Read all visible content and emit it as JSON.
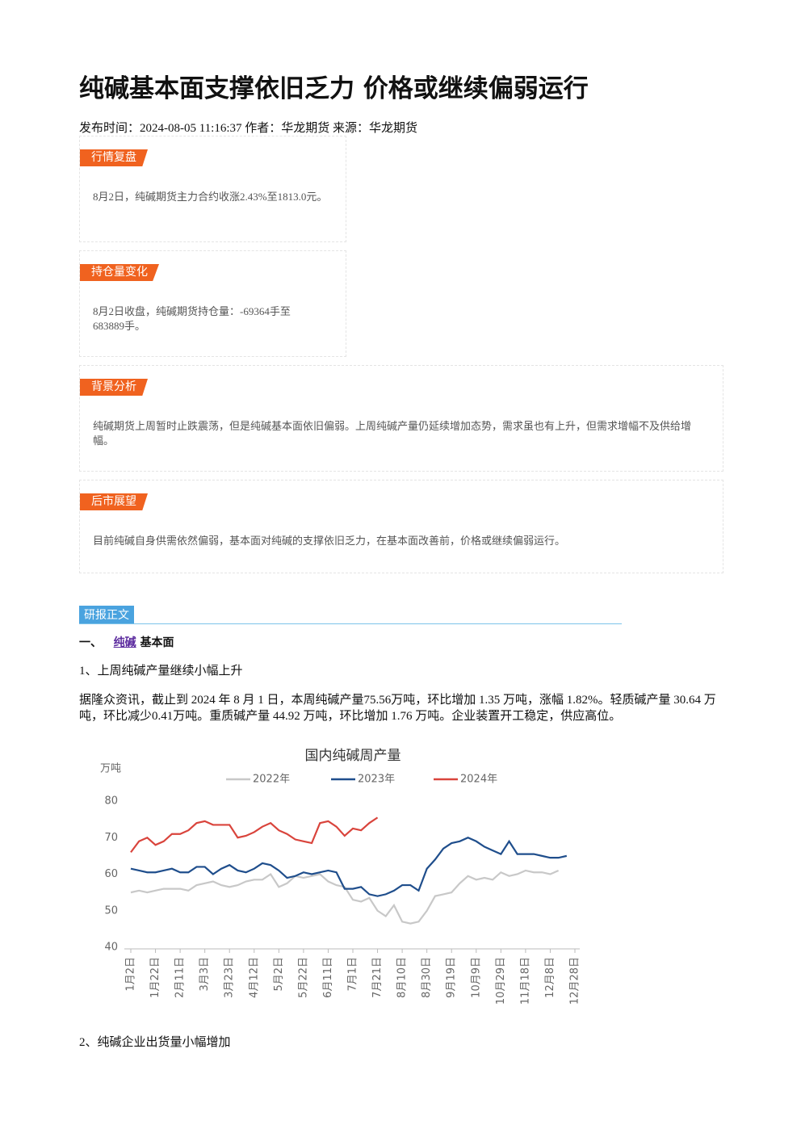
{
  "header": {
    "title": "纯碱基本面支撑依旧乏力 价格或继续偏弱运行",
    "meta": "发布时间：2024-08-05 11:16:37 作者：华龙期货 来源：华龙期货"
  },
  "sections": [
    {
      "tag": "行情复盘",
      "text": "8月2日，纯碱期货主力合约收涨2.43%至1813.0元。"
    },
    {
      "tag": "持仓量变化",
      "text": "8月2日收盘，纯碱期货持仓量：-69364手至683889手。"
    },
    {
      "tag": "背景分析",
      "text": "纯碱期货上周暂时止跌震荡，但是纯碱基本面依旧偏弱。上周纯碱产量仍延续增加态势，需求虽也有上升，但需求增幅不及供给增幅。"
    },
    {
      "tag": "后市展望",
      "text": "目前纯碱自身供需依然偏弱，基本面对纯碱的支撑依旧乏力，在基本面改善前，价格或继续偏弱运行。"
    }
  ],
  "body": {
    "label": "研报正文",
    "heading_prefix": "一、",
    "heading_link": "纯碱",
    "heading_suffix": "基本面",
    "sub1": "1、上周纯碱产量继续小幅上升",
    "para1": "据隆众资讯，截止到 2024 年 8 月 1 日，本周纯碱产量75.56万吨，环比增加 1.35 万吨，涨幅 1.82%。轻质碱产量 30.64 万吨，环比减少0.41万吨。重质碱产量 44.92 万吨，环比增加 1.76 万吨。企业装置开工稳定，供应高位。",
    "sub2": "2、纯碱企业出货量小幅增加"
  },
  "chart_data": {
    "type": "line",
    "title": "国内纯碱周产量",
    "y_label": "万吨",
    "categories": [
      "1月2日",
      null,
      null,
      "1月22日",
      null,
      null,
      "2月11日",
      null,
      null,
      "3月3日",
      null,
      null,
      "3月23日",
      null,
      null,
      "4月12日",
      null,
      null,
      "5月2日",
      null,
      null,
      "5月22日",
      null,
      null,
      "6月11日",
      null,
      null,
      "7月1日",
      null,
      null,
      "7月21日",
      null,
      null,
      "8月10日",
      null,
      null,
      "8月30日",
      null,
      null,
      "9月19日",
      null,
      null,
      "10月9日",
      null,
      null,
      "10月29日",
      null,
      null,
      "11月18日",
      null,
      null,
      "12月8日",
      null,
      null,
      "12月28日"
    ],
    "series": [
      {
        "name": "2022年",
        "color": "#c8c8c8",
        "values": [
          55,
          55.5,
          55,
          55.5,
          56,
          56,
          56,
          55.5,
          57,
          57.5,
          58,
          57,
          56.5,
          57,
          58,
          58.5,
          58.5,
          60,
          56.5,
          57.5,
          59.5,
          59,
          59.5,
          60,
          58,
          57,
          56.5,
          53,
          52.5,
          53.5,
          50,
          48.5,
          51.5,
          47,
          46.5,
          47,
          50,
          54,
          54.5,
          55,
          57.5,
          59.5,
          58.5,
          59,
          58.5,
          60.5,
          59.5,
          60,
          61,
          60.5,
          60.5,
          60,
          61,
          null,
          null
        ]
      },
      {
        "name": "2023年",
        "color": "#1f4e8c",
        "values": [
          61.5,
          61,
          60.5,
          60.5,
          61,
          61.5,
          60.5,
          60.5,
          62,
          62,
          60,
          61.5,
          62.5,
          61,
          60.5,
          61.5,
          63,
          62.5,
          61,
          59,
          59.5,
          60.5,
          60,
          60.5,
          61,
          60.5,
          56,
          56,
          56.5,
          54.5,
          54,
          54.5,
          55.5,
          57,
          57,
          55.5,
          61.5,
          64,
          67,
          68.5,
          69,
          70,
          69,
          67.5,
          66.5,
          65.5,
          69,
          65.5,
          65.5,
          65.5,
          65,
          64.5,
          64.5,
          65,
          null
        ]
      },
      {
        "name": "2024年",
        "color": "#d9443c",
        "values": [
          66,
          69,
          70,
          68,
          69,
          71,
          71,
          72,
          74,
          74.5,
          73.5,
          73.5,
          73.5,
          70,
          70.5,
          71.5,
          73,
          74,
          72,
          71,
          69.5,
          69,
          68.5,
          74,
          74.5,
          73,
          70.5,
          72.5,
          72,
          74,
          75.5,
          null,
          null,
          null,
          null,
          null,
          null,
          null,
          null,
          null,
          null,
          null,
          null,
          null,
          null,
          null,
          null,
          null,
          null,
          null,
          null,
          null,
          null,
          null,
          null
        ]
      }
    ],
    "ylim": [
      40,
      80
    ],
    "yticks": [
      40,
      50,
      60,
      70,
      80
    ],
    "grid": false
  }
}
